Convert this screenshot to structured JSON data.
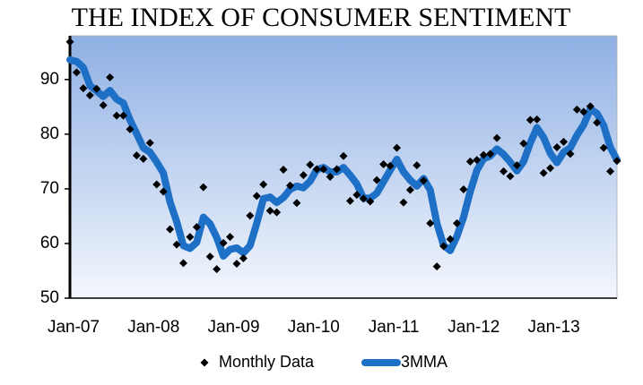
{
  "chart_data": {
    "type": "line",
    "title": "THE INDEX OF CONSUMER SENTIMENT",
    "categories": [
      "Jan-07",
      null,
      null,
      null,
      null,
      null,
      null,
      null,
      null,
      null,
      null,
      null,
      "Jan-08",
      null,
      null,
      null,
      null,
      null,
      null,
      null,
      null,
      null,
      null,
      null,
      "Jan-09",
      null,
      null,
      null,
      null,
      null,
      null,
      null,
      null,
      null,
      null,
      null,
      "Jan-10",
      null,
      null,
      null,
      null,
      null,
      null,
      null,
      null,
      null,
      null,
      null,
      "Jan-11",
      null,
      null,
      null,
      null,
      null,
      null,
      null,
      null,
      null,
      null,
      null,
      "Jan-12",
      null,
      null,
      null,
      null,
      null,
      null,
      null,
      null,
      null,
      null,
      null,
      "Jan-13",
      null,
      null,
      null,
      null,
      null,
      null,
      null,
      null,
      null,
      null
    ],
    "series": [
      {
        "name": "Monthly Data",
        "color": "#000000",
        "mode": "markers",
        "values": [
          96.9,
          91.3,
          88.4,
          87.1,
          88.3,
          85.3,
          90.4,
          83.4,
          83.4,
          80.9,
          76.1,
          75.5,
          78.4,
          70.8,
          69.5,
          62.6,
          59.8,
          56.4,
          61.2,
          63.0,
          70.3,
          57.6,
          55.3,
          60.1,
          61.2,
          56.3,
          57.3,
          65.1,
          68.7,
          70.8,
          66.0,
          65.7,
          73.5,
          70.6,
          67.4,
          72.5,
          74.4,
          73.6,
          73.6,
          72.2,
          73.6,
          76.0,
          67.8,
          68.9,
          68.2,
          67.7,
          71.6,
          74.5,
          74.2,
          77.5,
          67.5,
          69.8,
          74.3,
          71.5,
          63.7,
          55.8,
          59.5,
          60.8,
          63.7,
          69.9,
          75.0,
          75.3,
          76.2,
          76.4,
          79.3,
          73.2,
          72.3,
          74.3,
          78.3,
          82.6,
          82.7,
          72.9,
          73.8,
          77.6,
          78.6,
          76.4,
          84.5,
          84.1,
          85.1,
          82.1,
          77.5,
          73.2,
          75.1
        ]
      },
      {
        "name": "3MMA",
        "color": "#1e6fc6",
        "mode": "line",
        "values": [
          93.6,
          93.3,
          92.2,
          88.9,
          87.9,
          86.9,
          88.0,
          86.4,
          85.7,
          82.6,
          80.1,
          77.5,
          76.7,
          74.9,
          72.9,
          67.6,
          64.0,
          59.6,
          59.1,
          60.2,
          64.8,
          63.6,
          61.1,
          57.7,
          58.9,
          59.2,
          58.3,
          59.6,
          63.7,
          68.2,
          68.5,
          67.5,
          68.4,
          69.9,
          70.5,
          70.2,
          71.4,
          73.5,
          73.9,
          73.1,
          73.1,
          73.9,
          72.5,
          70.9,
          68.3,
          68.3,
          69.2,
          71.3,
          73.4,
          75.4,
          73.1,
          71.6,
          70.5,
          71.9,
          69.8,
          63.7,
          59.7,
          58.7,
          61.3,
          64.8,
          69.5,
          73.4,
          75.5,
          76.0,
          77.3,
          76.3,
          74.9,
          73.3,
          75.0,
          78.4,
          81.2,
          79.4,
          76.5,
          74.8,
          76.7,
          77.5,
          79.8,
          81.7,
          84.6,
          83.8,
          81.6,
          77.6,
          75.3
        ]
      }
    ],
    "ylim": [
      50,
      98
    ],
    "yticks": [
      50,
      60,
      70,
      80,
      90
    ],
    "grid": false,
    "legend": "bottom"
  }
}
